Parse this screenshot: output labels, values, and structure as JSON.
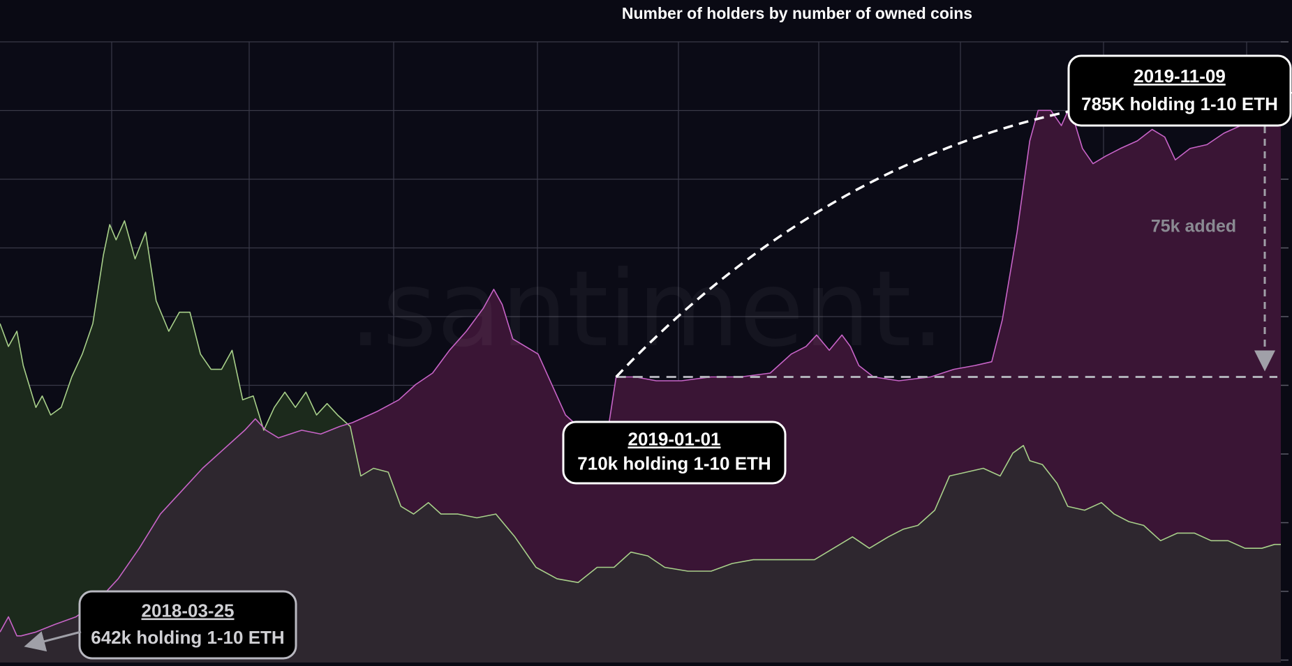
{
  "chart_data": {
    "type": "area",
    "title": "Number of holders by number of owned coins",
    "watermark": ".santiment.",
    "xlabel": "",
    "ylabel": "",
    "x_range": [
      "2018-03-15",
      "2019-11-12"
    ],
    "y_range": [
      635,
      798
    ],
    "grid": true,
    "legend": "none",
    "series": [
      {
        "key": "holders_1_10",
        "unit": "thousand holders",
        "color": "#c864c8",
        "fill": "#3a1535",
        "points": [
          [
            "2018-03-15",
            643
          ],
          [
            "2018-03-19",
            647
          ],
          [
            "2018-03-23",
            642
          ],
          [
            "2018-03-25",
            642
          ],
          [
            "2018-04-01",
            643
          ],
          [
            "2018-04-10",
            645
          ],
          [
            "2018-04-20",
            647
          ],
          [
            "2018-04-30",
            651
          ],
          [
            "2018-05-10",
            657
          ],
          [
            "2018-05-20",
            665
          ],
          [
            "2018-05-30",
            674
          ],
          [
            "2018-06-09",
            680
          ],
          [
            "2018-06-19",
            686
          ],
          [
            "2018-06-29",
            691
          ],
          [
            "2018-07-09",
            696
          ],
          [
            "2018-07-14",
            699
          ],
          [
            "2018-07-19",
            696
          ],
          [
            "2018-07-25",
            694
          ],
          [
            "2018-08-05",
            696
          ],
          [
            "2018-08-14",
            695
          ],
          [
            "2018-08-23",
            697
          ],
          [
            "2018-08-29",
            698
          ],
          [
            "2018-09-10",
            701
          ],
          [
            "2018-09-20",
            704
          ],
          [
            "2018-09-28",
            708
          ],
          [
            "2018-10-06",
            711
          ],
          [
            "2018-10-14",
            717
          ],
          [
            "2018-10-22",
            722
          ],
          [
            "2018-10-30",
            728
          ],
          [
            "2018-11-04",
            733
          ],
          [
            "2018-11-08",
            729
          ],
          [
            "2018-11-13",
            720
          ],
          [
            "2018-11-25",
            716
          ],
          [
            "2018-12-08",
            700
          ],
          [
            "2018-12-20",
            694
          ],
          [
            "2018-12-27",
            692
          ],
          [
            "2019-01-01",
            710
          ],
          [
            "2019-01-10",
            710
          ],
          [
            "2019-01-20",
            709
          ],
          [
            "2019-02-01",
            709
          ],
          [
            "2019-02-15",
            710
          ],
          [
            "2019-03-01",
            710
          ],
          [
            "2019-03-15",
            711
          ],
          [
            "2019-03-25",
            716
          ],
          [
            "2019-04-01",
            718
          ],
          [
            "2019-04-06",
            721
          ],
          [
            "2019-04-12",
            717
          ],
          [
            "2019-04-18",
            721
          ],
          [
            "2019-04-22",
            718
          ],
          [
            "2019-04-26",
            713
          ],
          [
            "2019-05-03",
            710
          ],
          [
            "2019-05-15",
            709
          ],
          [
            "2019-05-30",
            710
          ],
          [
            "2019-06-10",
            712
          ],
          [
            "2019-06-20",
            713
          ],
          [
            "2019-06-28",
            714
          ],
          [
            "2019-07-03",
            725
          ],
          [
            "2019-07-10",
            748
          ],
          [
            "2019-07-16",
            772
          ],
          [
            "2019-07-20",
            780
          ],
          [
            "2019-07-26",
            780
          ],
          [
            "2019-07-31",
            776
          ],
          [
            "2019-08-04",
            781
          ],
          [
            "2019-08-10",
            770
          ],
          [
            "2019-08-15",
            766
          ],
          [
            "2019-08-21",
            768
          ],
          [
            "2019-08-28",
            770
          ],
          [
            "2019-09-05",
            772
          ],
          [
            "2019-09-12",
            775
          ],
          [
            "2019-09-18",
            773
          ],
          [
            "2019-09-23",
            767
          ],
          [
            "2019-09-30",
            770
          ],
          [
            "2019-10-08",
            771
          ],
          [
            "2019-10-16",
            774
          ],
          [
            "2019-10-24",
            776
          ],
          [
            "2019-11-01",
            779
          ],
          [
            "2019-11-05",
            782
          ],
          [
            "2019-11-09",
            785
          ],
          [
            "2019-11-12",
            784
          ]
        ]
      },
      {
        "key": "holders_other",
        "unit": "thousand holders",
        "color": "#a8d08a",
        "fill": "#2e272f",
        "fill_above_other": "#1c2a1c",
        "points": [
          [
            "2018-03-15",
            724
          ],
          [
            "2018-03-19",
            718
          ],
          [
            "2018-03-23",
            722
          ],
          [
            "2018-03-26",
            713
          ],
          [
            "2018-04-01",
            702
          ],
          [
            "2018-04-04",
            705
          ],
          [
            "2018-04-08",
            700
          ],
          [
            "2018-04-13",
            702
          ],
          [
            "2018-04-18",
            710
          ],
          [
            "2018-04-23",
            716
          ],
          [
            "2018-04-28",
            724
          ],
          [
            "2018-05-03",
            742
          ],
          [
            "2018-05-06",
            750
          ],
          [
            "2018-05-09",
            746
          ],
          [
            "2018-05-13",
            751
          ],
          [
            "2018-05-18",
            741
          ],
          [
            "2018-05-23",
            748
          ],
          [
            "2018-05-28",
            730
          ],
          [
            "2018-06-03",
            722
          ],
          [
            "2018-06-08",
            727
          ],
          [
            "2018-06-13",
            727
          ],
          [
            "2018-06-18",
            716
          ],
          [
            "2018-06-23",
            712
          ],
          [
            "2018-06-28",
            712
          ],
          [
            "2018-07-03",
            717
          ],
          [
            "2018-07-08",
            704
          ],
          [
            "2018-07-13",
            705
          ],
          [
            "2018-07-18",
            696
          ],
          [
            "2018-07-23",
            702
          ],
          [
            "2018-07-28",
            706
          ],
          [
            "2018-08-02",
            702
          ],
          [
            "2018-08-07",
            706
          ],
          [
            "2018-08-12",
            700
          ],
          [
            "2018-08-17",
            703
          ],
          [
            "2018-08-22",
            700
          ],
          [
            "2018-08-28",
            697
          ],
          [
            "2018-09-02",
            684
          ],
          [
            "2018-09-08",
            686
          ],
          [
            "2018-09-15",
            685
          ],
          [
            "2018-09-21",
            676
          ],
          [
            "2018-09-27",
            674
          ],
          [
            "2018-10-04",
            677
          ],
          [
            "2018-10-10",
            674
          ],
          [
            "2018-10-18",
            674
          ],
          [
            "2018-10-27",
            673
          ],
          [
            "2018-11-05",
            674
          ],
          [
            "2018-11-14",
            668
          ],
          [
            "2018-11-24",
            660
          ],
          [
            "2018-12-04",
            657
          ],
          [
            "2018-12-14",
            656
          ],
          [
            "2018-12-23",
            660
          ],
          [
            "2018-12-31",
            660
          ],
          [
            "2019-01-08",
            664
          ],
          [
            "2019-01-16",
            663
          ],
          [
            "2019-01-24",
            660
          ],
          [
            "2019-02-04",
            659
          ],
          [
            "2019-02-15",
            659
          ],
          [
            "2019-02-25",
            661
          ],
          [
            "2019-03-07",
            662
          ],
          [
            "2019-03-17",
            662
          ],
          [
            "2019-03-27",
            662
          ],
          [
            "2019-04-05",
            662
          ],
          [
            "2019-04-14",
            665
          ],
          [
            "2019-04-23",
            668
          ],
          [
            "2019-05-01",
            665
          ],
          [
            "2019-05-10",
            668
          ],
          [
            "2019-05-17",
            670
          ],
          [
            "2019-05-24",
            671
          ],
          [
            "2019-06-01",
            675
          ],
          [
            "2019-06-08",
            684
          ],
          [
            "2019-06-16",
            685
          ],
          [
            "2019-06-24",
            686
          ],
          [
            "2019-07-02",
            684
          ],
          [
            "2019-07-08",
            690
          ],
          [
            "2019-07-13",
            692
          ],
          [
            "2019-07-16",
            688
          ],
          [
            "2019-07-22",
            687
          ],
          [
            "2019-07-29",
            682
          ],
          [
            "2019-08-03",
            676
          ],
          [
            "2019-08-11",
            675
          ],
          [
            "2019-08-19",
            677
          ],
          [
            "2019-08-25",
            674
          ],
          [
            "2019-09-01",
            672
          ],
          [
            "2019-09-08",
            671
          ],
          [
            "2019-09-16",
            667
          ],
          [
            "2019-09-24",
            669
          ],
          [
            "2019-10-02",
            669
          ],
          [
            "2019-10-10",
            667
          ],
          [
            "2019-10-18",
            667
          ],
          [
            "2019-10-26",
            665
          ],
          [
            "2019-11-03",
            665
          ],
          [
            "2019-11-09",
            666
          ],
          [
            "2019-11-12",
            666
          ]
        ]
      }
    ],
    "annotations": [
      {
        "date": "2018-03-25",
        "text": "642k holding 1-10 ETH",
        "arrow": true
      },
      {
        "date": "2019-01-01",
        "text": "710k holding 1-10 ETH"
      },
      {
        "date": "2019-11-09",
        "text": "785K holding 1-10 ETH"
      }
    ],
    "reference_line": {
      "y": 710
    },
    "trend_arrow": {
      "from": [
        "2019-01-01",
        710
      ],
      "to": [
        "2019-11-09",
        785
      ]
    },
    "difference_marker": {
      "label": "75k added",
      "from": 710,
      "to": 785
    }
  }
}
